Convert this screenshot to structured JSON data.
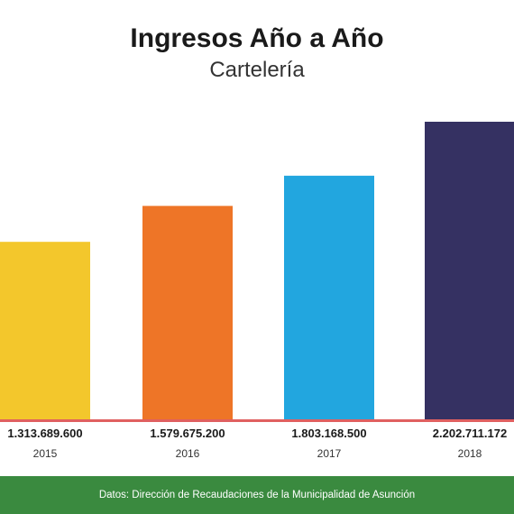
{
  "chart_data": {
    "type": "bar",
    "title": "Ingresos Año a Año",
    "subtitle": "Cartelería",
    "categories": [
      "2015",
      "2016",
      "2017",
      "2018"
    ],
    "values": [
      1313689600,
      1579675200,
      1803168500,
      2202711172
    ],
    "value_labels": [
      "1.313.689.600",
      "1.579.675.200",
      "1.803.168.500",
      "2.202.711.172"
    ],
    "colors": [
      "#f3c72c",
      "#ee7527",
      "#22a6df",
      "#353162"
    ],
    "baseline_color": "#e06060",
    "ylim": [
      0,
      2202711172
    ],
    "grid": false
  },
  "footer": {
    "source": "Datos: Dirección de Recaudaciones de la Municipalidad de Asunción"
  }
}
